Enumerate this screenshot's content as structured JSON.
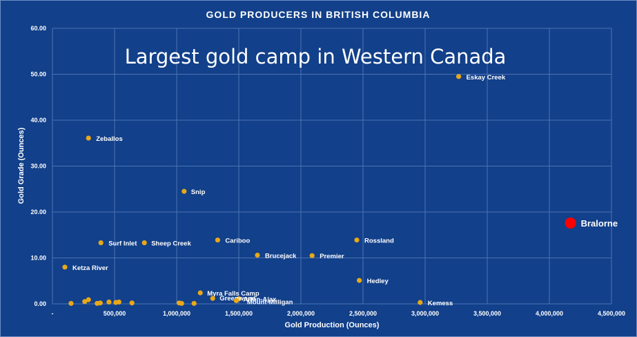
{
  "chart_data": {
    "type": "scatter",
    "title": "GOLD PRODUCERS IN BRITISH COLUMBIA",
    "subtitle": "Largest gold camp in Western Canada",
    "xlabel": "Gold Production (Ounces)",
    "ylabel": "Gold Grade (Ounces)",
    "xlim": [
      0,
      4500000
    ],
    "ylim": [
      0,
      60
    ],
    "xticks": [
      0,
      500000,
      1000000,
      1500000,
      2000000,
      2500000,
      3000000,
      3500000,
      4000000,
      4500000
    ],
    "xtick_labels": [
      "-",
      "500,000",
      "1,000,000",
      "1,500,000",
      "2,000,000",
      "2,500,000",
      "3,000,000",
      "3,500,000",
      "4,000,000",
      "4,500,000"
    ],
    "yticks": [
      0,
      10,
      20,
      30,
      40,
      50,
      60
    ],
    "ytick_labels": [
      "0.00",
      "10.00",
      "20.00",
      "30.00",
      "40.00",
      "50.00",
      "60.00"
    ],
    "grid": true,
    "colors": {
      "background": "#12408a",
      "point": "#e8a818",
      "highlight": "#ff0000",
      "grid": "#4e73b4"
    },
    "points": [
      {
        "name": "Eskay Creek",
        "x": 3270000,
        "y": 49.5
      },
      {
        "name": "Zeballos",
        "x": 290000,
        "y": 36.1
      },
      {
        "name": "Snip",
        "x": 1060000,
        "y": 24.5
      },
      {
        "name": "Surf Inlet",
        "x": 390000,
        "y": 13.3
      },
      {
        "name": "Sheep Creek",
        "x": 740000,
        "y": 13.3
      },
      {
        "name": "Cariboo",
        "x": 1330000,
        "y": 13.9
      },
      {
        "name": "Rossland",
        "x": 2450000,
        "y": 13.9
      },
      {
        "name": "Ketza River",
        "x": 100000,
        "y": 8.0
      },
      {
        "name": "Brucejack",
        "x": 1650000,
        "y": 10.6
      },
      {
        "name": "Premier",
        "x": 2090000,
        "y": 10.5
      },
      {
        "name": "Hedley",
        "x": 2470000,
        "y": 5.1
      },
      {
        "name": "Myra Falls Camp",
        "x": 1190000,
        "y": 2.4
      },
      {
        "name": "Mount Milligan",
        "x": 1500000,
        "y": 1.1
      },
      {
        "name": "Greenwood",
        "x": 1290000,
        "y": 1.2
      },
      {
        "name": "Arlon-Ajax",
        "x": 1480000,
        "y": 0.7
      },
      {
        "name": "Kemess",
        "x": 2960000,
        "y": 0.3
      },
      {
        "name": "",
        "x": 150000,
        "y": 0.1
      },
      {
        "name": "",
        "x": 260000,
        "y": 0.5
      },
      {
        "name": "",
        "x": 290000,
        "y": 0.9
      },
      {
        "name": "",
        "x": 360000,
        "y": 0.1
      },
      {
        "name": "",
        "x": 385000,
        "y": 0.2
      },
      {
        "name": "",
        "x": 455000,
        "y": 0.4
      },
      {
        "name": "",
        "x": 510000,
        "y": 0.3
      },
      {
        "name": "",
        "x": 535000,
        "y": 0.4
      },
      {
        "name": "",
        "x": 640000,
        "y": 0.2
      },
      {
        "name": "",
        "x": 1020000,
        "y": 0.2
      },
      {
        "name": "",
        "x": 1040000,
        "y": 0.1
      },
      {
        "name": "",
        "x": 1140000,
        "y": 0.1
      }
    ],
    "highlight": {
      "name": "Bralorne",
      "x": 4170000,
      "y": 17.6
    }
  }
}
